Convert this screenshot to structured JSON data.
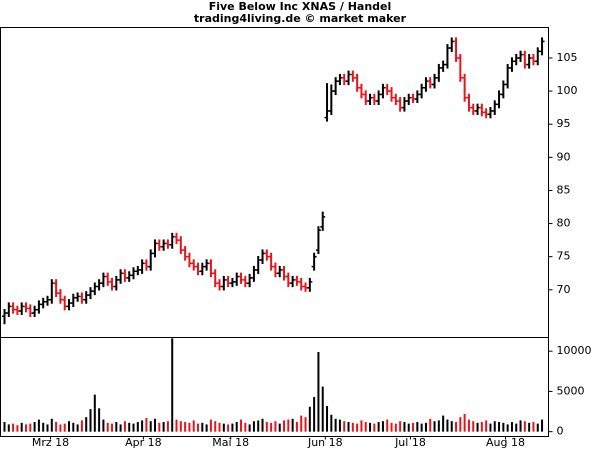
{
  "chart_data": {
    "type": "ohlc",
    "title": "Five Below Inc XNAS / Handel",
    "subtitle": "trading4living.de © market maker",
    "up_color": "#000000",
    "down_color": "#e8141b",
    "open": [
      66,
      66.5,
      67.5,
      67,
      66.8,
      67.5,
      67.2,
      66.5,
      67,
      67.8,
      68.2,
      68.5,
      71,
      69.5,
      68.5,
      67.5,
      68,
      68.8,
      69,
      68.5,
      69.2,
      69.8,
      70.5,
      71,
      72,
      71.2,
      70.5,
      71.5,
      72.5,
      71.8,
      72.2,
      72.8,
      73,
      74,
      73.5,
      75.5,
      77,
      76.5,
      77,
      76.8,
      78,
      77.5,
      76,
      75,
      74,
      73.5,
      72.8,
      73.5,
      74,
      72.5,
      71,
      70.5,
      71.5,
      71,
      71.2,
      72,
      71.5,
      71,
      71.8,
      73,
      74.5,
      75.5,
      75,
      73.5,
      72.5,
      73,
      72,
      71,
      71.5,
      71.2,
      70.5,
      70.3,
      73.5,
      76,
      79.5,
      96,
      97,
      100,
      101.5,
      102,
      101.5,
      102.5,
      102,
      100.5,
      99.5,
      98.5,
      99,
      98.5,
      99.5,
      100.5,
      100,
      99,
      98.5,
      97.5,
      98.5,
      99,
      98.8,
      99.5,
      100.5,
      101.5,
      101,
      102,
      103.5,
      104,
      106.5,
      107.5,
      105,
      102,
      99,
      97.5,
      97,
      97.5,
      96.8,
      96.5,
      97,
      98,
      99.5,
      101,
      103.5,
      104.5,
      105,
      105.5,
      104,
      105,
      104.5,
      106
    ],
    "high": [
      67.1,
      68.1,
      68.1,
      67.6,
      68.1,
      68.1,
      67.8,
      67.6,
      68.4,
      68.8,
      69.1,
      71.6,
      71.6,
      70.1,
      69.1,
      68.6,
      69.4,
      69.6,
      69.6,
      69.8,
      70.4,
      71.1,
      71.6,
      72.6,
      72.6,
      71.8,
      72.1,
      73.1,
      73.1,
      72.8,
      73.4,
      73.6,
      74.6,
      74.6,
      76.1,
      77.6,
      77.6,
      77.6,
      77.6,
      78.6,
      78.6,
      78.1,
      76.6,
      75.6,
      74.6,
      74.1,
      74.1,
      74.6,
      74.6,
      73.1,
      71.6,
      72.1,
      72.1,
      71.8,
      72.6,
      72.6,
      72.1,
      72.4,
      73.6,
      75.1,
      76.1,
      76.1,
      75.6,
      74.1,
      73.6,
      73.6,
      72.6,
      72.1,
      72.1,
      71.8,
      71.1,
      71.8,
      75.6,
      79.6,
      81.8,
      101.2,
      101,
      102.1,
      102.6,
      102.6,
      103.1,
      103.1,
      102.6,
      101.1,
      100.1,
      99.6,
      99.6,
      100.1,
      101.1,
      101.1,
      100.6,
      99.6,
      99.1,
      99.1,
      99.6,
      99.6,
      100.1,
      101.1,
      102.1,
      102.1,
      102.6,
      104.1,
      104.6,
      107.1,
      108.1,
      108.1,
      105.6,
      102.6,
      99.6,
      98.1,
      98.1,
      98.1,
      97.4,
      97.6,
      98.6,
      100.1,
      101.6,
      104.1,
      105.1,
      105.6,
      106.1,
      106.1,
      105.6,
      105.6,
      106.6,
      108.1
    ],
    "low": [
      64.8,
      65.9,
      66.4,
      66.2,
      66.2,
      66.6,
      65.9,
      65.9,
      66.4,
      67.2,
      67.6,
      67.9,
      68.9,
      67.9,
      66.9,
      66.9,
      67.4,
      68.2,
      67.9,
      67.9,
      68.6,
      69.2,
      69.9,
      70.4,
      70.6,
      69.9,
      69.9,
      70.9,
      71.2,
      71.2,
      71.6,
      72.2,
      72.4,
      72.9,
      72.9,
      74.9,
      75.9,
      75.9,
      76.2,
      76.2,
      76.9,
      75.4,
      74.4,
      73.4,
      72.9,
      72.2,
      72.2,
      72.9,
      71.9,
      70.4,
      69.9,
      69.9,
      70.4,
      70.4,
      70.6,
      70.9,
      70.4,
      70.4,
      71.2,
      72.4,
      73.9,
      74.4,
      72.9,
      71.9,
      71.9,
      71.4,
      70.4,
      70.4,
      70.6,
      69.9,
      69.7,
      69.7,
      72.9,
      75.4,
      78.9,
      95.4,
      96.4,
      99.4,
      100.9,
      100.9,
      100.9,
      101.4,
      99.9,
      98.9,
      97.9,
      97.9,
      97.9,
      97.9,
      98.9,
      99.4,
      98.4,
      97.9,
      96.9,
      96.9,
      97.9,
      98.2,
      98.2,
      98.9,
      99.9,
      100.4,
      100.4,
      101.4,
      102.9,
      103.4,
      105.9,
      104.4,
      101.4,
      98.4,
      96.9,
      96.4,
      96.4,
      96.2,
      95.9,
      95.9,
      96.4,
      97.4,
      98.9,
      100.4,
      102.9,
      103.9,
      104.4,
      103.4,
      103.4,
      103.9,
      103.9,
      105.4
    ],
    "close": [
      66.5,
      67.5,
      67,
      66.8,
      67.5,
      67.2,
      66.5,
      67,
      67.8,
      68.2,
      68.5,
      71,
      69.5,
      68.5,
      67.5,
      68,
      68.8,
      69,
      68.5,
      69.2,
      69.8,
      70.5,
      71,
      72,
      71.2,
      70.5,
      71.5,
      72.5,
      71.8,
      72.2,
      72.8,
      73,
      74,
      73.5,
      75.5,
      77,
      76.5,
      77,
      76.8,
      78,
      77.5,
      76,
      75,
      74,
      73.5,
      72.8,
      73.5,
      74,
      72.5,
      71,
      70.5,
      71.5,
      71,
      71.2,
      72,
      71.5,
      71,
      71.8,
      73,
      74.5,
      75.5,
      75,
      73.5,
      72.5,
      73,
      72,
      71,
      71.5,
      71.2,
      70.5,
      70.3,
      71.2,
      75,
      79,
      81,
      97,
      100,
      101.5,
      102,
      101.5,
      102.5,
      102,
      100.5,
      99.5,
      98.5,
      99,
      98.5,
      99.5,
      100.5,
      100,
      99,
      98.5,
      97.5,
      98.5,
      99,
      98.8,
      99.5,
      100.5,
      101.5,
      101,
      102,
      103.5,
      104,
      106.5,
      107.5,
      105,
      102,
      99,
      97.5,
      97,
      97.5,
      96.8,
      96.5,
      97,
      98,
      99.5,
      101,
      103.5,
      104.5,
      105,
      105.5,
      104,
      105,
      104.5,
      106,
      107.5
    ],
    "xlim": [
      -0.93,
      126.5
    ],
    "xticks": [
      {
        "value": 10.7,
        "label": "Mrz 18"
      },
      {
        "value": 32.3,
        "label": "Apr 18"
      },
      {
        "value": 52.6,
        "label": "Mai 18"
      },
      {
        "value": 74.6,
        "label": "Jun 18"
      },
      {
        "value": 94.4,
        "label": "Jul 18"
      },
      {
        "value": 116.5,
        "label": "Aug 18"
      }
    ],
    "ylim": [
      62.8,
      109.6
    ],
    "yticks": [
      70,
      75,
      80,
      85,
      90,
      95,
      100,
      105
    ],
    "volume": {
      "values": [
        1200,
        900,
        1000,
        800,
        1100,
        900,
        1000,
        1200,
        1500,
        1100,
        900,
        1600,
        1200,
        900,
        1000,
        1300,
        1100,
        900,
        1400,
        1800,
        2800,
        4600,
        2900,
        1500,
        1100,
        1000,
        1200,
        900,
        1300,
        1100,
        1000,
        1200,
        1400,
        1700,
        1300,
        1600,
        1100,
        1200,
        1300,
        11600,
        1500,
        1300,
        1200,
        1100,
        1400,
        1000,
        1100,
        900,
        1500,
        1300,
        1100,
        1000,
        900,
        1000,
        1200,
        1500,
        1100,
        900,
        1300,
        1400,
        1600,
        1200,
        1100,
        1300,
        1000,
        1400,
        1500,
        1600,
        1200,
        2000,
        1800,
        3100,
        4300,
        9900,
        5600,
        3200,
        2100,
        1600,
        1500,
        1300,
        1200,
        1100,
        1000,
        1400,
        1200,
        1100,
        1000,
        1200,
        1300,
        1500,
        1100,
        1000,
        1300,
        1200,
        1000,
        1100,
        1200,
        1000,
        1100,
        1600,
        1300,
        1400,
        2000,
        1500,
        1300,
        1200,
        1800,
        2200,
        1500,
        1300,
        1100,
        1200,
        1400,
        1000,
        1300,
        1200,
        1100,
        900,
        1200,
        1000,
        1400,
        1300,
        1100,
        1200,
        1000,
        1500
      ],
      "ylim": [
        -600,
        11700
      ],
      "yticks": [
        0,
        5000,
        10000
      ]
    }
  }
}
